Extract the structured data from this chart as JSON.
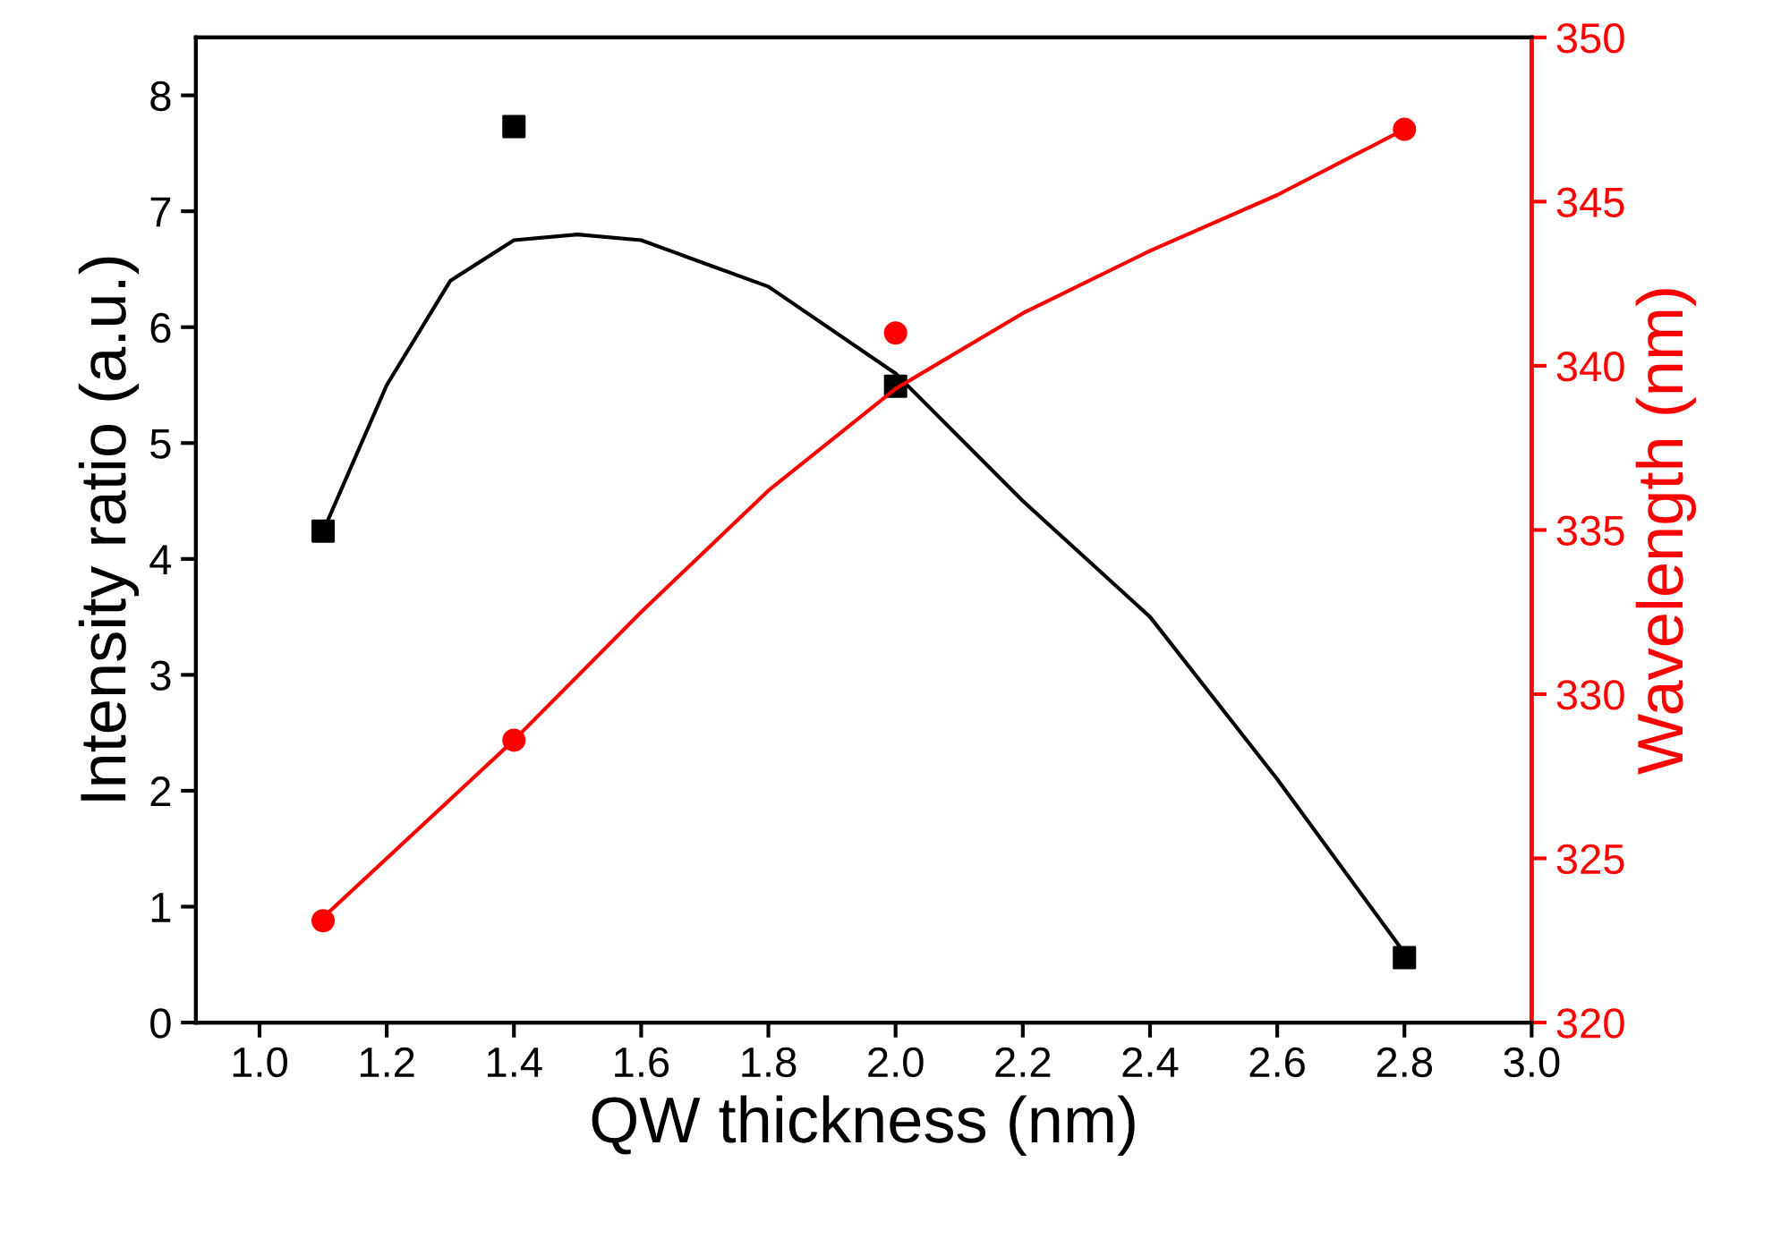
{
  "chart_data": {
    "type": "scatter",
    "xlabel": "QW thickness (nm)",
    "ylabel": "Intensity ratio (a.u.)",
    "y2label": "Wavelength (nm)",
    "xlim": [
      0.9,
      3.0
    ],
    "xticks": [
      {
        "value": 1.0,
        "label": "1.0"
      },
      {
        "value": 1.2,
        "label": "1.2"
      },
      {
        "value": 1.4,
        "label": "1.4"
      },
      {
        "value": 1.6,
        "label": "1.6"
      },
      {
        "value": 1.8,
        "label": "1.8"
      },
      {
        "value": 2.0,
        "label": "2.0"
      },
      {
        "value": 2.2,
        "label": "2.2"
      },
      {
        "value": 2.4,
        "label": "2.4"
      },
      {
        "value": 2.6,
        "label": "2.6"
      },
      {
        "value": 2.8,
        "label": "2.8"
      },
      {
        "value": 3.0,
        "label": "3.0"
      }
    ],
    "ylim": [
      0,
      8.5
    ],
    "yticks": [
      0,
      1,
      2,
      3,
      4,
      5,
      6,
      7,
      8
    ],
    "y2lim": [
      320,
      350
    ],
    "y2ticks": [
      320,
      325,
      330,
      335,
      340,
      345,
      350
    ],
    "series": [
      {
        "marker": "square",
        "color": "#000000",
        "x": [
          1.1,
          1.4,
          2.0,
          2.8
        ],
        "values": [
          4.24,
          7.73,
          5.49,
          0.56
        ]
      },
      {
        "type": "line",
        "marker": "none",
        "color": "#000000",
        "x": [
          1.1,
          1.2,
          1.3,
          1.4,
          1.5,
          1.6,
          1.8,
          2.0,
          2.2,
          2.4,
          2.6,
          2.8
        ],
        "values": [
          4.24,
          5.5,
          6.4,
          6.75,
          6.8,
          6.75,
          6.35,
          5.6,
          4.5,
          3.5,
          2.1,
          0.6
        ]
      },
      {
        "marker": "circle",
        "color": "#ff0000",
        "axis": "y2",
        "x": [
          1.1,
          1.4,
          2.0,
          2.8
        ],
        "values": [
          323.1,
          328.6,
          341.0,
          347.2
        ]
      },
      {
        "type": "line",
        "marker": "none",
        "color": "#ff0000",
        "axis": "y2",
        "x": [
          1.1,
          1.4,
          1.6,
          1.8,
          2.0,
          2.2,
          2.4,
          2.6,
          2.8
        ],
        "values": [
          323.2,
          328.6,
          332.5,
          336.2,
          339.3,
          341.6,
          343.5,
          345.2,
          347.2
        ]
      }
    ]
  }
}
